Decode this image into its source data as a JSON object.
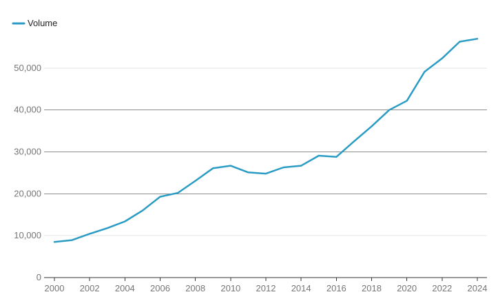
{
  "chart_data": {
    "type": "line",
    "title": "",
    "xlabel": "",
    "ylabel": "",
    "xlim": [
      2000,
      2024
    ],
    "ylim": [
      0,
      60000
    ],
    "grid": true,
    "legend": {
      "position": "top-left"
    },
    "x_ticks": [
      "2000",
      "2002",
      "2004",
      "2006",
      "2008",
      "2010",
      "2012",
      "2014",
      "2016",
      "2018",
      "2020",
      "2022",
      "2024"
    ],
    "y_ticks": [
      "0",
      "10,000",
      "20,000",
      "30,000",
      "40,000",
      "50,000"
    ],
    "x": [
      2000,
      2001,
      2002,
      2003,
      2004,
      2005,
      2006,
      2007,
      2008,
      2009,
      2010,
      2011,
      2012,
      2013,
      2014,
      2015,
      2016,
      2017,
      2018,
      2019,
      2020,
      2021,
      2022,
      2023,
      2024
    ],
    "series": [
      {
        "name": "Volume",
        "color": "#2a9cc4",
        "values": [
          8500,
          8950,
          10450,
          11800,
          13400,
          16000,
          19300,
          20200,
          23100,
          26100,
          26700,
          25100,
          24800,
          26300,
          26700,
          29100,
          28800,
          32500,
          36100,
          40000,
          42200,
          49100,
          52300,
          56300,
          57000
        ]
      }
    ]
  }
}
